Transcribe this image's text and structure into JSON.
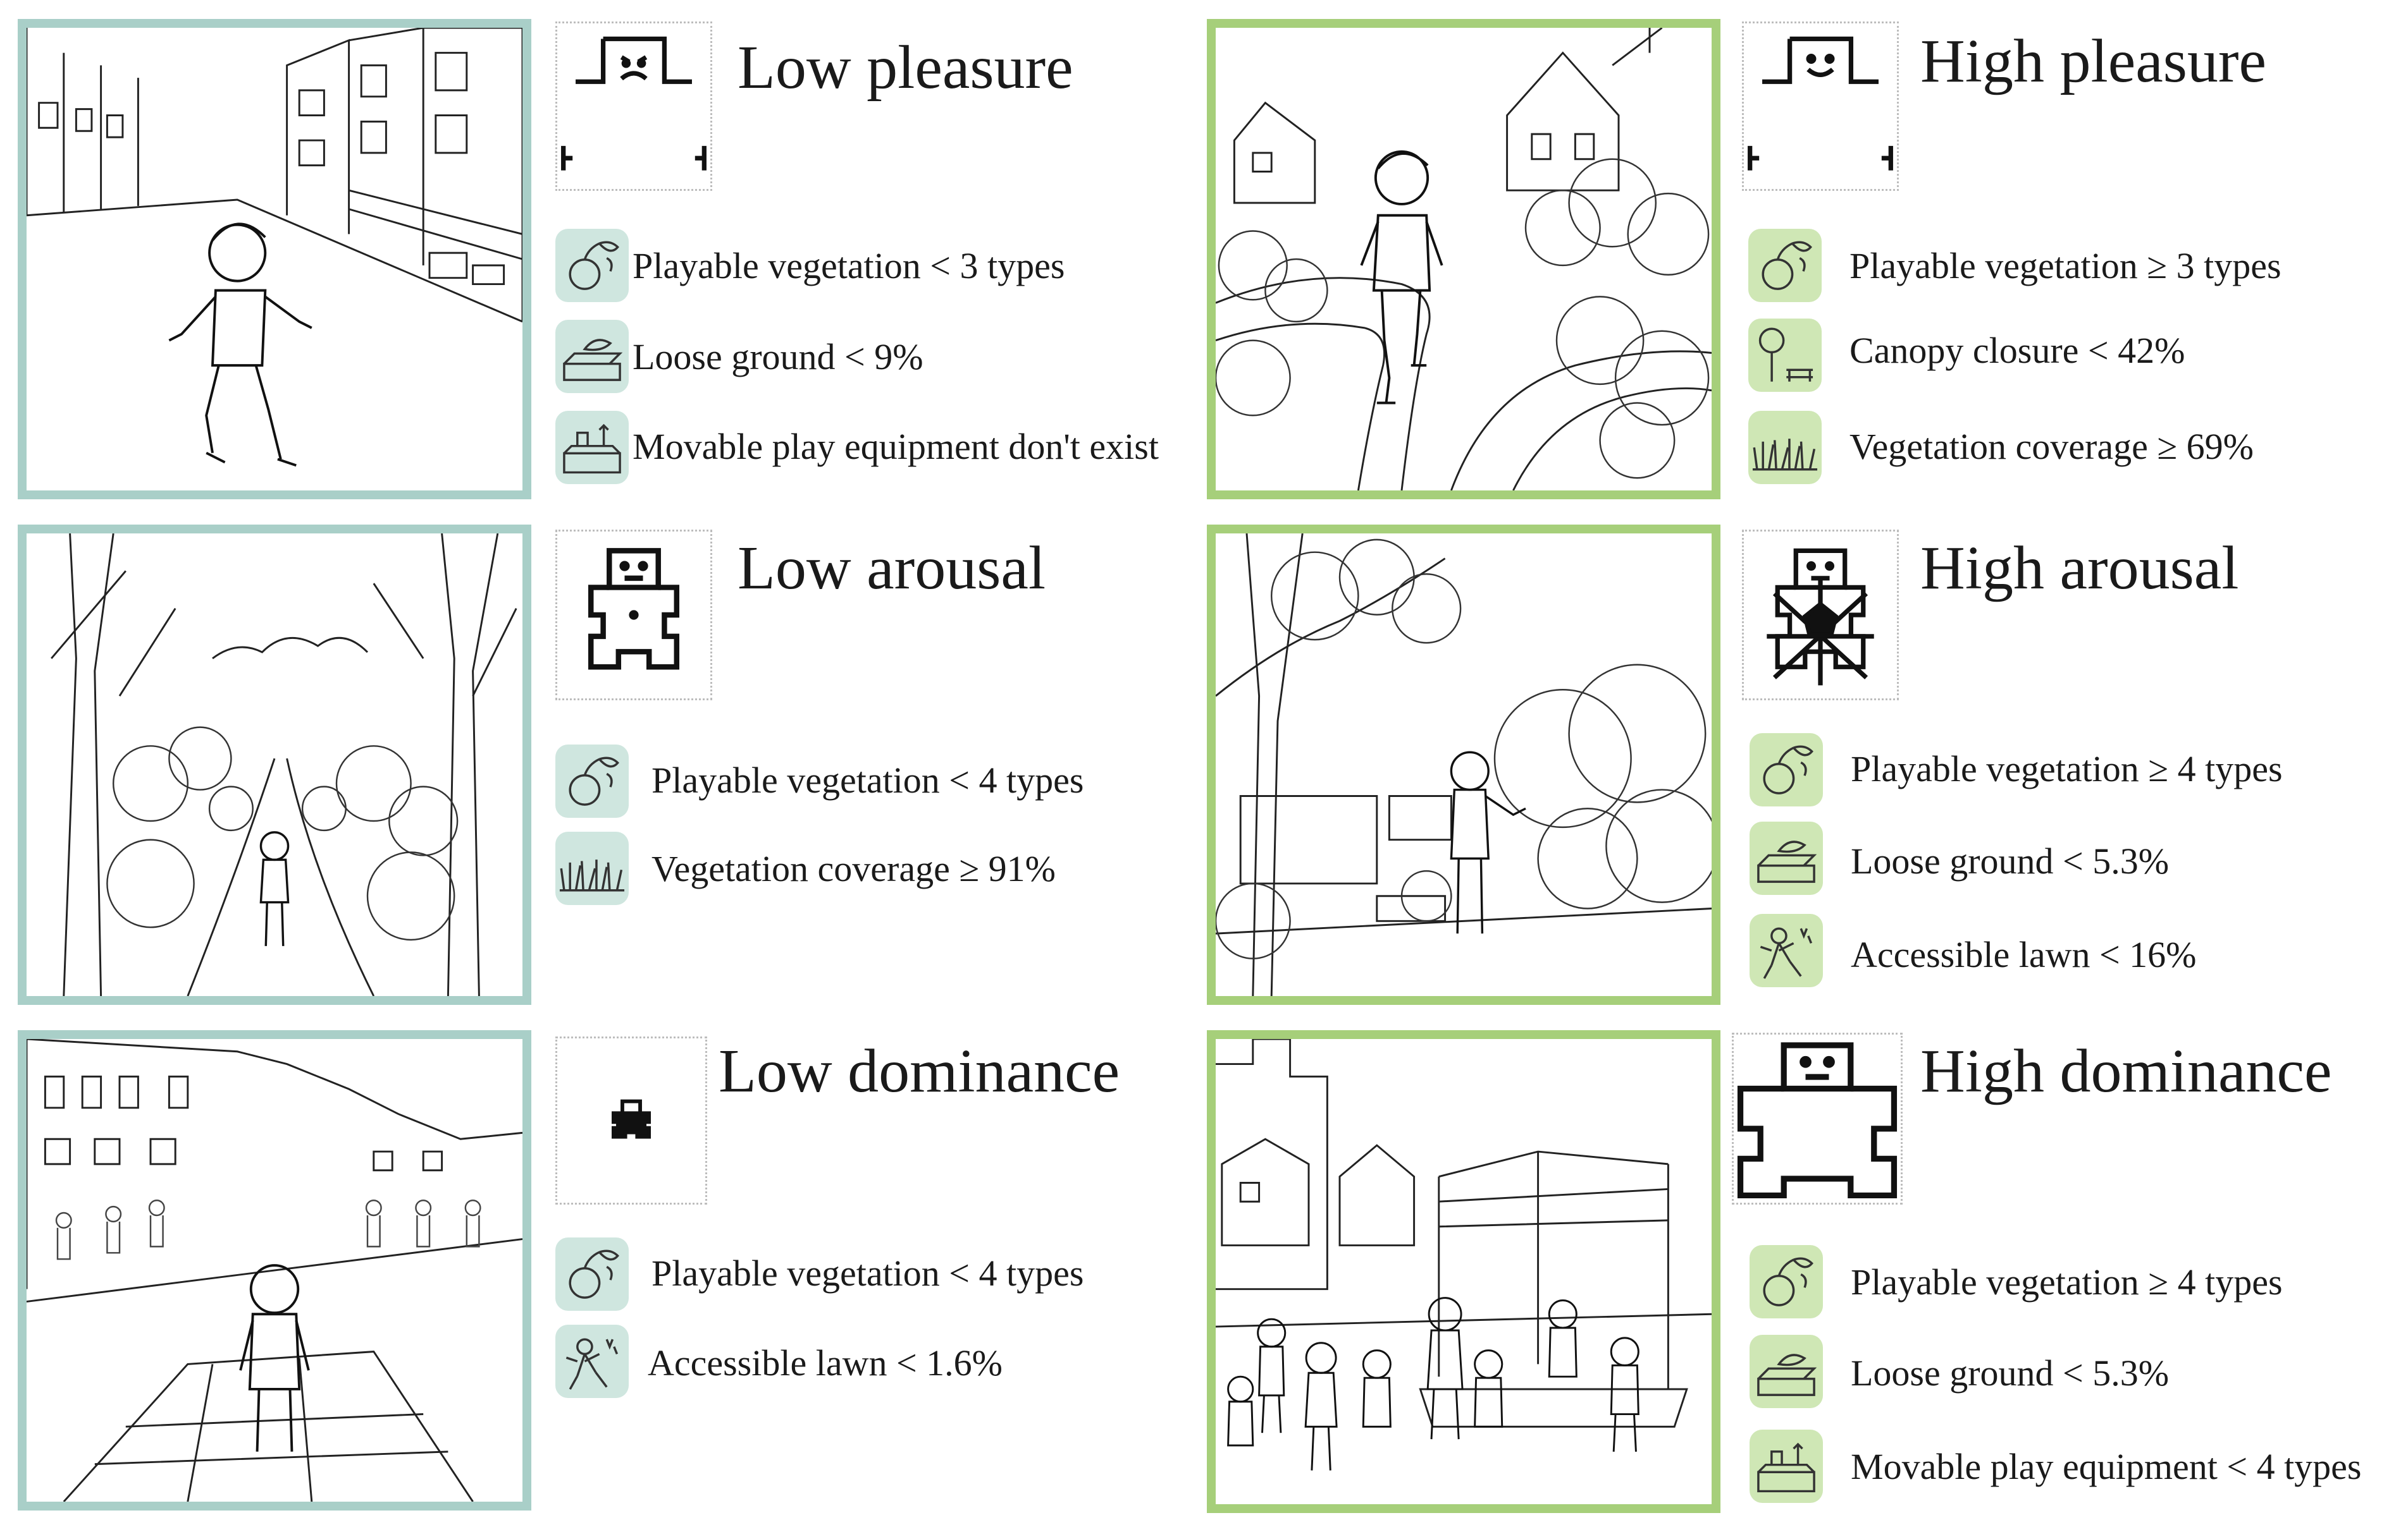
{
  "colors": {
    "low_frame": "#a9cfc8",
    "high_frame": "#a6cf7a",
    "low_icon_bg": "#cfe6df",
    "high_icon_bg": "#cfe7b5"
  },
  "quadrants": {
    "low_pleasure": {
      "title": "Low pleasure",
      "sam_icon": "frowning-figure-icon",
      "indicators": [
        {
          "icon": "playable-vegetation-icon",
          "text": "Playable vegetation < 3 types"
        },
        {
          "icon": "loose-ground-icon",
          "text": "Loose ground < 9%"
        },
        {
          "icon": "movable-play-equipment-icon",
          "text": "Movable play equipment don't exist"
        }
      ]
    },
    "high_pleasure": {
      "title": "High pleasure",
      "sam_icon": "smiling-figure-icon",
      "indicators": [
        {
          "icon": "playable-vegetation-icon",
          "text": "Playable vegetation ≥ 3 types"
        },
        {
          "icon": "canopy-closure-icon",
          "text": "Canopy closure < 42%"
        },
        {
          "icon": "vegetation-coverage-icon",
          "text": "Vegetation coverage ≥ 69%"
        }
      ]
    },
    "low_arousal": {
      "title": "Low arousal",
      "sam_icon": "calm-figure-icon",
      "indicators": [
        {
          "icon": "playable-vegetation-icon",
          "text": "Playable vegetation < 4 types"
        },
        {
          "icon": "vegetation-coverage-icon",
          "text": "Vegetation coverage ≥ 91%"
        }
      ]
    },
    "high_arousal": {
      "title": "High arousal",
      "sam_icon": "excited-figure-icon",
      "indicators": [
        {
          "icon": "playable-vegetation-icon",
          "text": "Playable vegetation ≥ 4 types"
        },
        {
          "icon": "loose-ground-icon",
          "text": "Loose ground < 5.3%"
        },
        {
          "icon": "accessible-lawn-icon",
          "text": "Accessible lawn < 16%"
        }
      ]
    },
    "low_dominance": {
      "title": "Low dominance",
      "sam_icon": "small-figure-icon",
      "indicators": [
        {
          "icon": "playable-vegetation-icon",
          "text": "Playable vegetation < 4 types"
        },
        {
          "icon": "accessible-lawn-icon",
          "text": "Accessible lawn < 1.6%"
        }
      ]
    },
    "high_dominance": {
      "title": "High dominance",
      "sam_icon": "large-figure-icon",
      "indicators": [
        {
          "icon": "playable-vegetation-icon",
          "text": "Playable vegetation ≥ 4 types"
        },
        {
          "icon": "loose-ground-icon",
          "text": "Loose ground < 5.3%"
        },
        {
          "icon": "movable-play-equipment-icon",
          "text": "Movable play equipment < 4 types"
        }
      ]
    }
  }
}
